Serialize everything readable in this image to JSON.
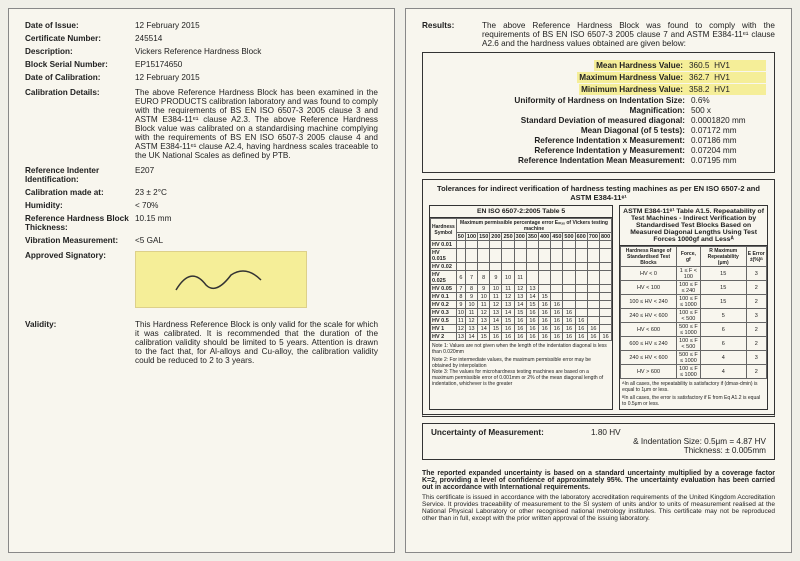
{
  "left": {
    "dateIssueLbl": "Date of Issue:",
    "dateIssue": "12 February 2015",
    "certNoLbl": "Certificate Number:",
    "certNo": "245514",
    "descLbl": "Description:",
    "desc": "Vickers Reference Hardness Block",
    "serialLbl": "Block Serial Number:",
    "serial": "EP15174650",
    "dateCalLbl": "Date of Calibration:",
    "dateCal": "12 February 2015",
    "calDetLbl": "Calibration Details:",
    "calDet": "The above Reference Hardness Block has been examined in the EURO PRODUCTS calibration laboratory and was found to comply with the requirements of BS EN ISO 6507-3 2005 clause 3 and ASTM E384-11ᵉ¹ clause A2.3. The above Reference Hardness Block value was calibrated on a standardising machine complying with the requirements of BS EN ISO 6507-3 2005 clause 4 and ASTM E384-11ᵉ¹ clause A2.4, having hardness scales traceable to the UK National Scales as defined by PTB.",
    "indLbl": "Reference Indenter Identification:",
    "ind": "E207",
    "calAtLbl": "Calibration made at:",
    "calAt": "23 ± 2°C",
    "humLbl": "Humidity:",
    "hum": "< 70%",
    "thickLbl": "Reference Hardness Block Thickness:",
    "thick": "10.15 mm",
    "vibLbl": "Vibration Measurement:",
    "vib": "<5 GAL",
    "sigLbl": "Approved Signatory:",
    "validLbl": "Validity:",
    "valid": "This Hardness Reference Block is only valid for the scale for which it was calibrated. It is recommended that the duration of the calibration validity should be limited to 5 years. Attention is drawn to the fact that, for Al-alloys and Cu-alloy, the calibration validity could be reduced to 2 to 3 years."
  },
  "right": {
    "resultsLbl": "Results:",
    "resultsTxt": "The above Reference Hardness Block was found to comply with the requirements of BS EN ISO 6507-3 2005 clause 7 and ASTM E384-11ᵉ¹ clause A2.6 and the hardness values obtained are given below:",
    "meanLbl": "Mean Hardness Value:",
    "meanV": "360.5",
    "meanU": "HV1",
    "maxLbl": "Maximum Hardness Value:",
    "maxV": "362.7",
    "maxU": "HV1",
    "minLbl": "Minimum Hardness Value:",
    "minV": "358.2",
    "minU": "HV1",
    "unifLbl": "Uniformity of Hardness on Indentation Size:",
    "unif": "0.6%",
    "magLbl": "Magnification:",
    "mag": "500 x",
    "sdLbl": "Standard Deviation of measured diagonal:",
    "sd": "0.0001820 mm",
    "mdLbl": "Mean Diagonal (of 5 tests):",
    "md": "0.07172 mm",
    "rxLbl": "Reference Indentation x Measurement:",
    "rx": "0.07186 mm",
    "ryLbl": "Reference Indentation y Measurement:",
    "ry": "0.07204 mm",
    "rmLbl": "Reference Indentation Mean Measurement:",
    "rm": "0.07195 mm",
    "tolTitle": "Tolerances for indirect verification of hardness testing machines as per EN ISO 6507-2 and ASTM E384-11ᵉ¹",
    "tolLeftH": "EN ISO 6507-2:2005 Table 5",
    "tolRightH": "ASTM E384-11ᵉ¹ Table A1.5. Repeatability of Test Machines - Indirect Verification by Standardised Test Blocks Based on Measured Diagonal Lengths Using Test Forces 1000gf and Lessᴬ",
    "leftRows": [
      "HV 0.01",
      "HV 0.015",
      "HV 0.02",
      "HV 0.025",
      "HV 0.05",
      "HV 0.1",
      "HV 0.2",
      "HV 0.3",
      "HV 0.5",
      "HV 1",
      "HV 2"
    ],
    "leftNote1": "Note 1: Values are not given when the length of the indentation diagonal is less than 0.020mm",
    "leftNote2": "Note 2: For intermediate values, the maximum permissible error may be obtained by interpolation",
    "leftNote3": "Note 3: The values for microhardness testing machines are based on a maximum permissible error of 0.001mm or 2% of the mean diagonal length of indentation, whichever is the greater",
    "rightHdr1": "Hardness Range of Standardised Test Blocks",
    "rightHdr2": "Force, gf",
    "rightHdr3": "R Maximum Repeatability (μm)",
    "rightHdr4": "E Error ±(%)ᴮ",
    "rightRows": [
      [
        "HV < 0",
        "1 ≤ F < 100",
        "15",
        "3"
      ],
      [
        "HV < 100",
        "100 ≤ F ≤ 240",
        "15",
        "2"
      ],
      [
        "100 ≤ HV < 240",
        "100 ≤ F ≤ 1000",
        "15",
        "2"
      ],
      [
        "240 ≤ HV < 600",
        "100 ≤ F < 500",
        "5",
        "3"
      ],
      [
        "HV < 600",
        "500 ≤ F ≤ 1000",
        "6",
        "2"
      ],
      [
        "600 ≤ HV ≤ 240",
        "100 ≤ F < 500",
        "6",
        "2"
      ],
      [
        "240 ≤ HV < 600",
        "500 ≤ F ≤ 1000",
        "4",
        "3"
      ],
      [
        "HV > 600",
        "100 ≤ F ≤ 1000",
        "4",
        "2"
      ]
    ],
    "rightFootA": "ᴬIn all cases, the repeatability is satisfactory if (dmax-dmin) is equal to 1μm or less.",
    "rightFootB": "ᴮIn all cases, the error is satisfactory if E from Eq A1.2 is equal to 0.5μm or less.",
    "uncLbl": "Uncertainty of Measurement:",
    "uncV": "1.80 HV",
    "uncInd": "& Indentation Size: 0.5μm = 4.87 HV",
    "uncThk": "Thickness: ± 0.005mm",
    "footB": "The reported expanded uncertainty is based on a standard uncertainty multiplied by a coverage factor K=2, providing a level of confidence of approximately 95%. The uncertainty evaluation has been carried out in accordance with International requirements.",
    "footS": "This certificate is issued in accordance with the laboratory accreditation requirements of the United Kingdom Accreditation Service. It provides traceability of measurement to the SI system of units and/or to units of measurement realised at the National Physical Laboratory or other recognised national metrology institutes. This certificate may not be reproduced other than in full, except with the prior written approval of the issuing laboratory."
  }
}
